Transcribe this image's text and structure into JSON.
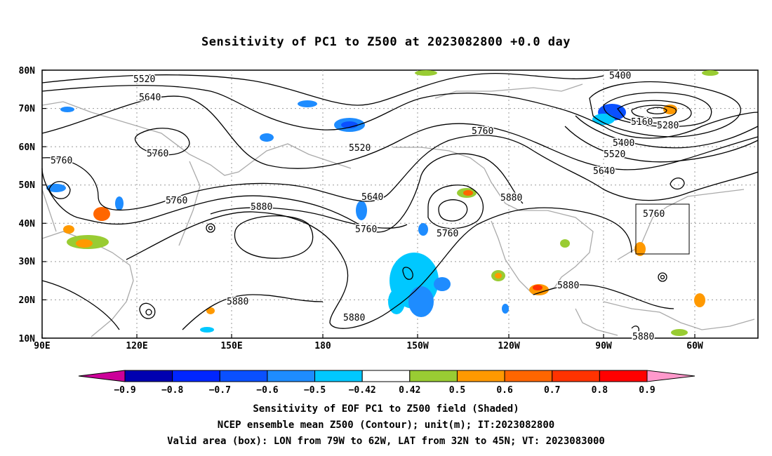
{
  "title": "Sensitivity of PC1 to Z500 at 2023082800 +0.0 day",
  "lat_labels": [
    "80N",
    "70N",
    "60N",
    "50N",
    "40N",
    "30N",
    "20N",
    "10N"
  ],
  "lon_labels": [
    "90E",
    "120E",
    "150E",
    "180",
    "150W",
    "120W",
    "90W",
    "60W"
  ],
  "contour_labels": [
    "5520",
    "5640",
    "5760",
    "5760",
    "5520",
    "5760",
    "5640",
    "5760",
    "5880",
    "5760",
    "5880",
    "5760",
    "5400",
    "5160",
    "5280",
    "5400",
    "5520",
    "5640",
    "5760",
    "5880",
    "5880",
    "5880",
    "5880"
  ],
  "colorbar": {
    "labels": [
      "-0.9",
      "-0.8",
      "-0.7",
      "-0.6",
      "-0.5",
      "-0.42",
      "0.42",
      "0.5",
      "0.6",
      "0.7",
      "0.8",
      "0.9"
    ],
    "colors": [
      "#0000b0",
      "#0026ff",
      "#0a50ff",
      "#1e8cff",
      "#00c8ff",
      "#ffffff",
      "#99cc33",
      "#ff9900",
      "#ff6600",
      "#ff3300",
      "#ff0000"
    ],
    "low_end_color": "#cc0099",
    "high_end_color": "#ff99cc"
  },
  "footer": {
    "line1": "Sensitivity of EOF PC1 to Z500 field (Shaded)",
    "line2": "NCEP ensemble mean Z500 (Contour); unit(m); IT:2023082800",
    "line3": "Valid area (box): LON from 79W to 62W, LAT from 32N to 45N; VT: 2023083000"
  }
}
